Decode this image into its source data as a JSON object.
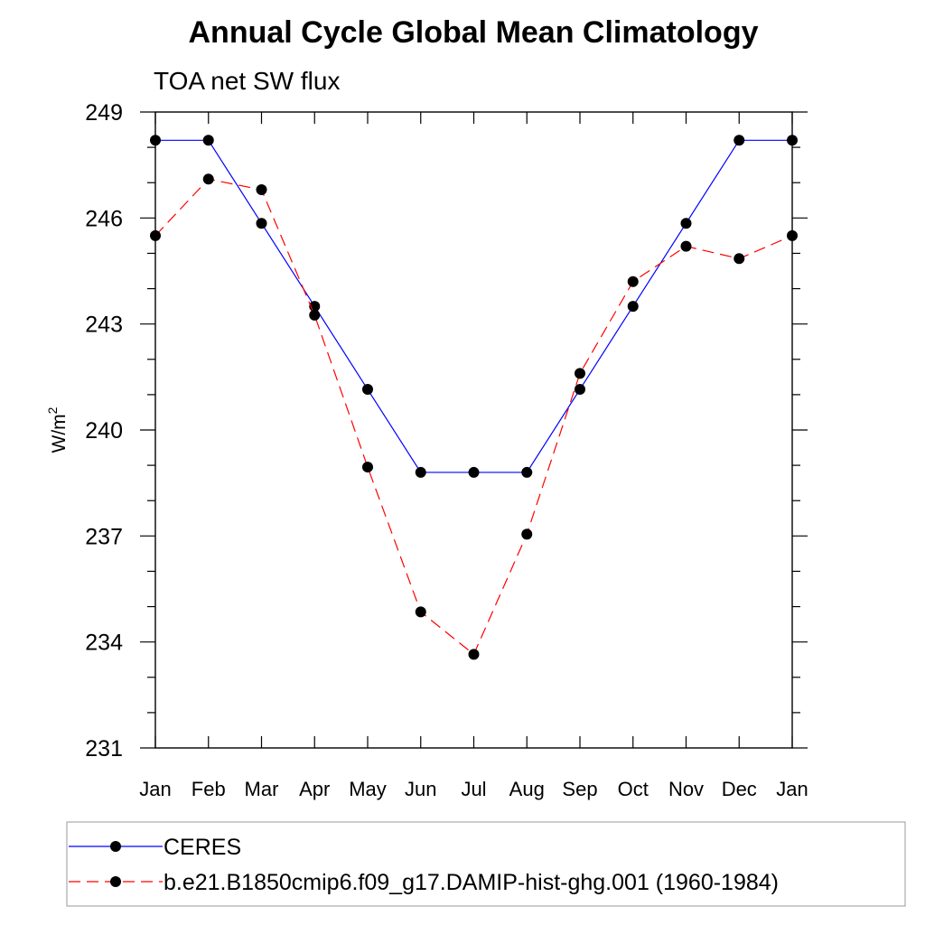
{
  "chart_data": {
    "type": "line",
    "title": "Annual Cycle Global Mean Climatology",
    "subtitle": "TOA net SW flux",
    "xlabel": "",
    "ylabel": "W/m",
    "ylabel_superscript": "2",
    "categories": [
      "Jan",
      "Feb",
      "Mar",
      "Apr",
      "May",
      "Jun",
      "Jul",
      "Aug",
      "Sep",
      "Oct",
      "Nov",
      "Dec",
      "Jan"
    ],
    "ylim": [
      231,
      249
    ],
    "yticks": [
      231,
      234,
      237,
      240,
      243,
      246,
      249
    ],
    "yticks_minor_step": 1,
    "grid": false,
    "legend_position": "bottom",
    "series": [
      {
        "name": "CERES",
        "color": "#0000ff",
        "line_style": "solid",
        "marker": "filled-circle",
        "values": [
          248.2,
          248.2,
          245.85,
          243.5,
          241.15,
          238.8,
          238.8,
          238.8,
          241.15,
          243.5,
          245.85,
          248.2,
          248.2
        ]
      },
      {
        "name": "b.e21.B1850cmip6.f09_g17.DAMIP-hist-ghg.001 (1960-1984)",
        "color": "#ff0000",
        "line_style": "dashed",
        "marker": "filled-circle",
        "values": [
          245.5,
          247.1,
          246.8,
          243.25,
          238.95,
          234.85,
          233.65,
          237.05,
          241.6,
          244.2,
          245.2,
          244.85,
          245.5
        ]
      }
    ]
  }
}
